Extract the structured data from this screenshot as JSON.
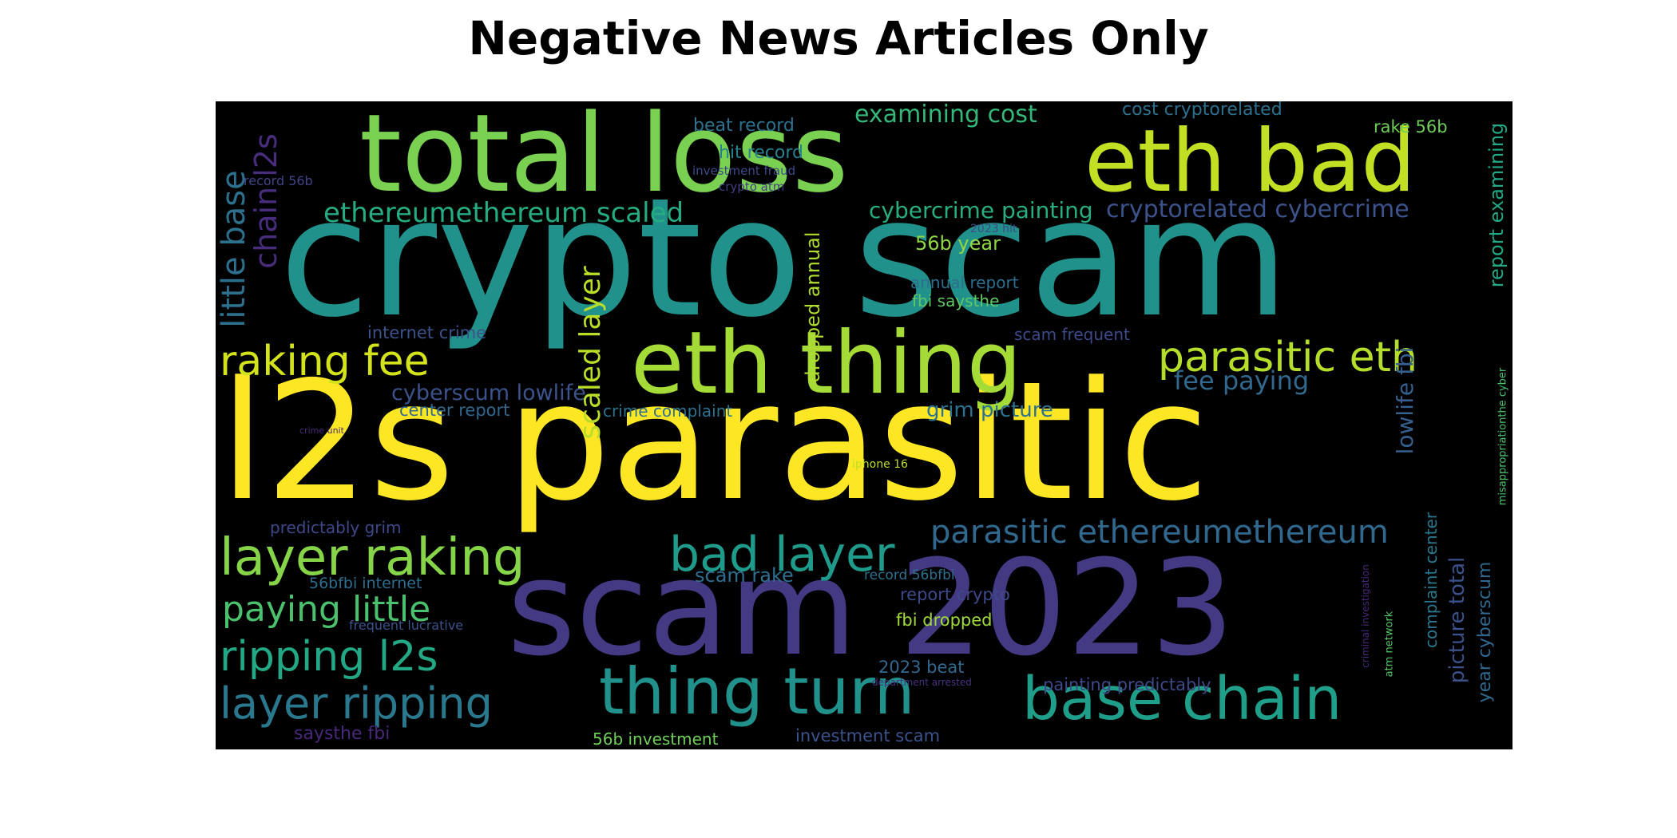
{
  "title": "Negative News Articles Only",
  "words": [
    {
      "text": "crypto scam",
      "color": "#21918c"
    },
    {
      "text": "l2s parasitic",
      "color": "#fde725"
    },
    {
      "text": "scam 2023",
      "color": "#443983"
    },
    {
      "text": "total loss",
      "color": "#7ad151"
    },
    {
      "text": "eth bad",
      "color": "#c2df23"
    },
    {
      "text": "eth thing",
      "color": "#a5db36"
    },
    {
      "text": "thing turn",
      "color": "#21918c"
    },
    {
      "text": "base chain",
      "color": "#1f9e89"
    },
    {
      "text": "layer raking",
      "color": "#86d549"
    },
    {
      "text": "bad layer",
      "color": "#1e9b8a"
    },
    {
      "text": "layer ripping",
      "color": "#2a788e"
    },
    {
      "text": "ripping l2s",
      "color": "#22a884"
    },
    {
      "text": "raking fee",
      "color": "#d2e21b"
    },
    {
      "text": "paying little",
      "color": "#4ac16d"
    },
    {
      "text": "parasitic eth",
      "color": "#b5de2b"
    },
    {
      "text": "parasitic ethereumethereum",
      "color": "#31688e"
    },
    {
      "text": "ethereumethereum scaled",
      "color": "#25ac82"
    },
    {
      "text": "cryptorelated cybercrime",
      "color": "#3b528b"
    },
    {
      "text": "cybercrime painting",
      "color": "#27ad81"
    },
    {
      "text": "examining cost",
      "color": "#35b779"
    },
    {
      "text": "cost cryptorelated",
      "color": "#2d708e"
    },
    {
      "text": "beat record",
      "color": "#2c728e"
    },
    {
      "text": "hit record",
      "color": "#26828e"
    },
    {
      "text": "rake 56b",
      "color": "#6ece58"
    },
    {
      "text": "56b year",
      "color": "#90d743"
    },
    {
      "text": "cyberscum lowlife",
      "color": "#3b528b"
    },
    {
      "text": "fee paying",
      "color": "#31688e"
    },
    {
      "text": "grim picture",
      "color": "#2c728e"
    },
    {
      "text": "annual report",
      "color": "#2e6e8e"
    },
    {
      "text": "fbi saysthe",
      "color": "#5ec962"
    },
    {
      "text": "scam frequent",
      "color": "#3e4989"
    },
    {
      "text": "internet crime",
      "color": "#3b528b"
    },
    {
      "text": "center report",
      "color": "#31688e"
    },
    {
      "text": "crime complaint",
      "color": "#2c728e"
    },
    {
      "text": "scam rake",
      "color": "#2e6e8e"
    },
    {
      "text": "record 56bfbi",
      "color": "#2d708e"
    },
    {
      "text": "report crypto",
      "color": "#3e4989"
    },
    {
      "text": "fbi dropped",
      "color": "#a0da39"
    },
    {
      "text": "2023 beat",
      "color": "#31688e"
    },
    {
      "text": "painting predictably",
      "color": "#3e4989"
    },
    {
      "text": "investment scam",
      "color": "#3b528b"
    },
    {
      "text": "56b investment",
      "color": "#6ece58"
    },
    {
      "text": "56bfbi internet",
      "color": "#2e6e8e"
    },
    {
      "text": "frequent lucrative",
      "color": "#3b528b"
    },
    {
      "text": "predictably grim",
      "color": "#3e4989"
    },
    {
      "text": "saysthe fbi",
      "color": "#482878"
    },
    {
      "text": "investment fraud",
      "color": "#3e4989"
    },
    {
      "text": "crypto atm",
      "color": "#433e85"
    },
    {
      "text": "record 56b",
      "color": "#414487"
    },
    {
      "text": "2023 hit",
      "color": "#3e4989"
    },
    {
      "text": "crime unit",
      "color": "#482878"
    },
    {
      "text": "iphone 16",
      "color": "#bddf26"
    },
    {
      "text": "department arrested",
      "color": "#46327e"
    },
    {
      "text": "little base",
      "color": "#2d708e"
    },
    {
      "text": "chain l2s",
      "color": "#472d7b"
    },
    {
      "text": "scaled layer",
      "color": "#bade28"
    },
    {
      "text": "dropped annual",
      "color": "#b0dd2f"
    },
    {
      "text": "lowlife fbi",
      "color": "#355f8d"
    },
    {
      "text": "report examining",
      "color": "#22a884"
    },
    {
      "text": "complaint center",
      "color": "#2a788e"
    },
    {
      "text": "picture total",
      "color": "#3b528b"
    },
    {
      "text": "year cyberscum",
      "color": "#31688e"
    },
    {
      "text": "atm network",
      "color": "#54c568"
    },
    {
      "text": "criminal investigation",
      "color": "#482878"
    },
    {
      "text": "misappropriationthe cyber",
      "color": "#4ac16d"
    }
  ]
}
